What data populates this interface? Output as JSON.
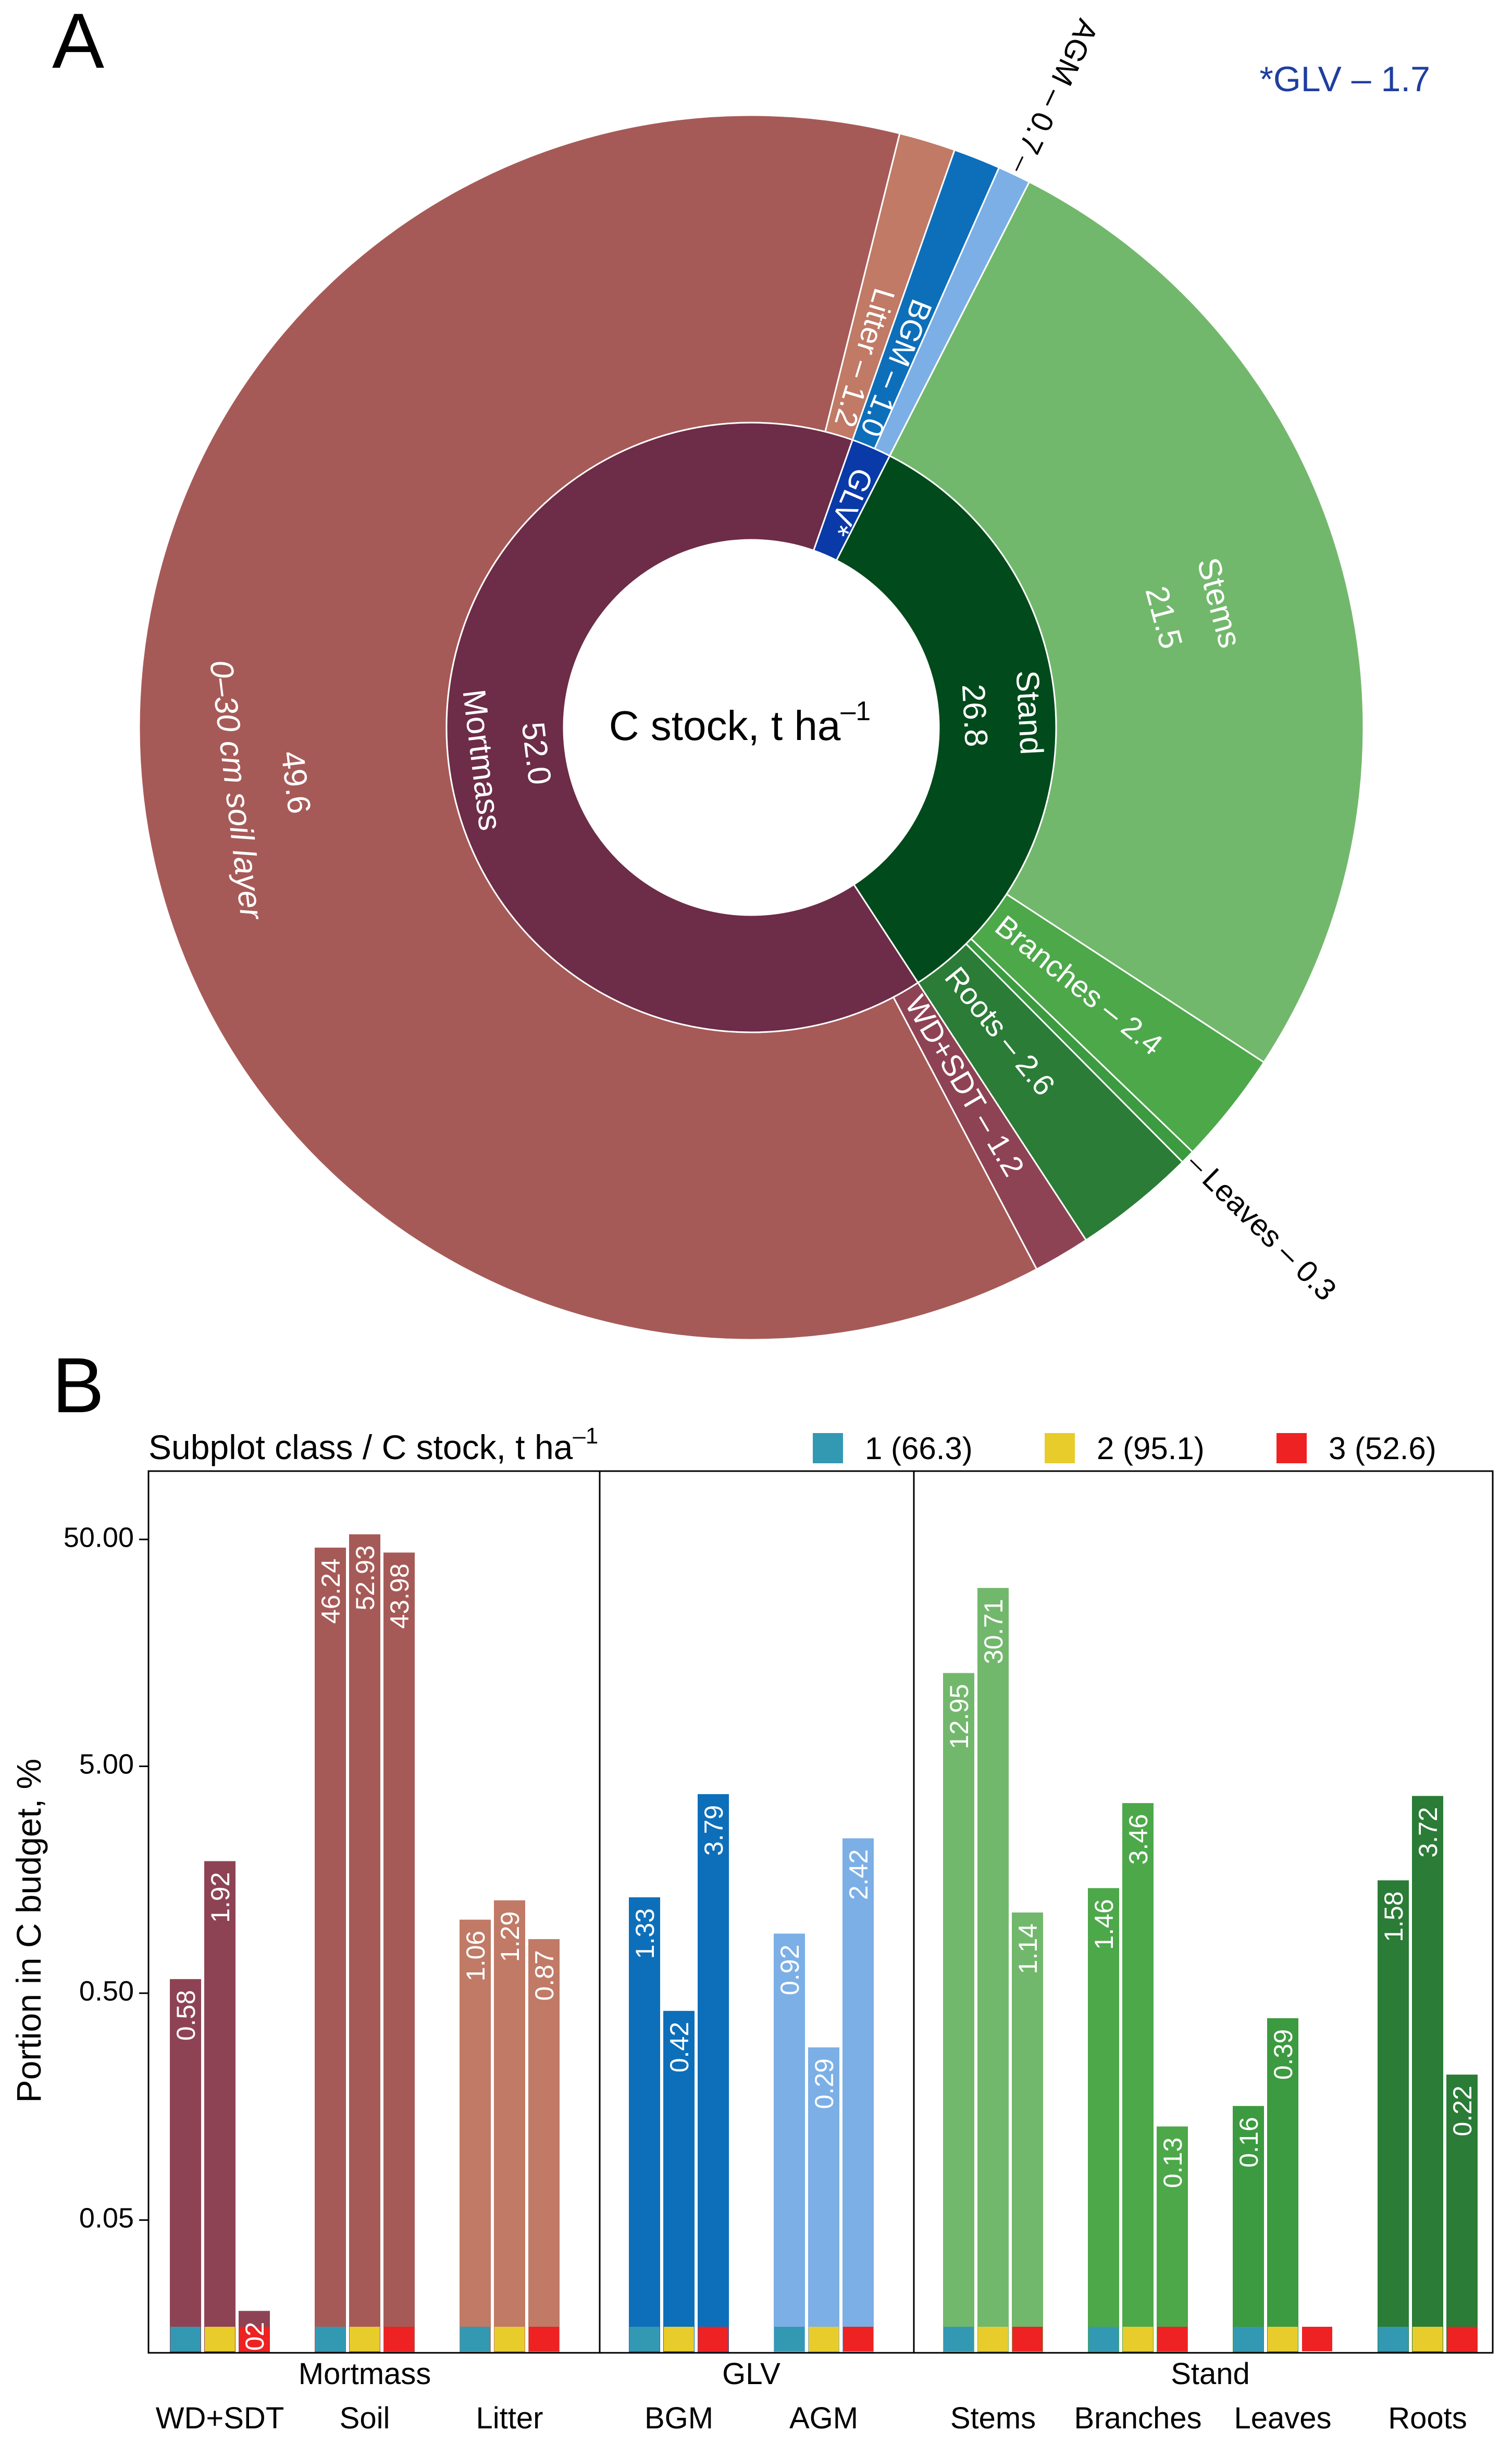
{
  "chart_data": [
    {
      "type": "sunburst",
      "panel_letter": "A",
      "center_label": "C stock, t ha",
      "center_label_sup": "–1",
      "footnote": "*GLV  – 1.7",
      "inner_ring": [
        {
          "name": "Stand",
          "value": 26.8,
          "label": "Stand",
          "value_label": "26.8",
          "color": "#004a1c"
        },
        {
          "name": "Mortmass",
          "value": 52.0,
          "label": "Mortmass",
          "value_label": "52.0",
          "color": "#6d2c47"
        },
        {
          "name": "GLV",
          "value": 1.7,
          "label": "GLV*",
          "color": "#0a3aa8"
        }
      ],
      "outer_ring": [
        {
          "name": "Stems",
          "parent": "Stand",
          "value": 21.5,
          "label": "Stems",
          "value_label": "21.5",
          "color": "#72b86c"
        },
        {
          "name": "Branches",
          "parent": "Stand",
          "value": 2.4,
          "label": "Branches – 2.4",
          "color": "#4da84a"
        },
        {
          "name": "Leaves",
          "parent": "Stand",
          "value": 0.3,
          "label": "Leaves – 0.3",
          "color": "#3c9a40"
        },
        {
          "name": "Roots",
          "parent": "Stand",
          "value": 2.6,
          "label": "Roots – 2.6",
          "color": "#2a7c36"
        },
        {
          "name": "WD+SDT",
          "parent": "Mortmass",
          "value": 1.2,
          "label": "WD+SDT – 1.2",
          "color": "#8e4355"
        },
        {
          "name": "0–30 cm soil layer",
          "parent": "Mortmass",
          "value": 49.6,
          "label": "0–30 cm soil layer",
          "value_label": "49.6",
          "color": "#a65a57"
        },
        {
          "name": "Litter",
          "parent": "Mortmass",
          "value": 1.2,
          "label": "Litter – 1.2",
          "color": "#c07a66"
        },
        {
          "name": "BGM",
          "parent": "GLV",
          "value": 1.0,
          "label": "BGM – 1.0",
          "color": "#0d6fba"
        },
        {
          "name": "AGM",
          "parent": "GLV",
          "value": 0.7,
          "label": "AGM – 0.7",
          "color": "#7cafe6"
        }
      ]
    },
    {
      "type": "bar",
      "panel_letter": "B",
      "title": "Subplot class / C stock, t ha",
      "title_sup": "–1",
      "ylabel": "Portion in C budget, %",
      "yscale": "log",
      "ylim": [
        0.013,
        100
      ],
      "yticks": [
        0.05,
        0.5,
        5.0,
        50.0
      ],
      "ytick_labels": [
        "0.05",
        "0.50",
        "5.00",
        "50.00"
      ],
      "legend_position": "top",
      "legend": [
        {
          "label": "1 (66.3)",
          "color": "#3399b3"
        },
        {
          "label": "2 (95.1)",
          "color": "#e8cc2c"
        },
        {
          "label": "3 (52.6)",
          "color": "#ee2222"
        }
      ],
      "groups": [
        {
          "label": "Mortmass",
          "categories": [
            "WD+SDT",
            "Soil",
            "Litter"
          ]
        },
        {
          "label": "GLV",
          "categories": [
            "BGM",
            "AGM"
          ]
        },
        {
          "label": "Stand",
          "categories": [
            "Stems",
            "Branches",
            "Leaves",
            "Roots"
          ]
        }
      ],
      "categories": [
        "WD+SDT",
        "Soil",
        "Litter",
        "BGM",
        "AGM",
        "Stems",
        "Branches",
        "Leaves",
        "Roots"
      ],
      "category_colors": [
        "#8e4355",
        "#a65a57",
        "#c07a66",
        "#0d6fba",
        "#7cafe6",
        "#72b86c",
        "#4da84a",
        "#3c9a40",
        "#2a7c36"
      ],
      "series": [
        {
          "name": "1 (66.3)",
          "values": [
            0.58,
            46.24,
            1.06,
            1.33,
            0.92,
            12.95,
            1.46,
            0.16,
            1.58
          ]
        },
        {
          "name": "2 (95.1)",
          "values": [
            1.92,
            52.93,
            1.29,
            0.42,
            0.29,
            30.71,
            3.46,
            0.39,
            3.72
          ]
        },
        {
          "name": "3 (52.6)",
          "values": [
            0.02,
            43.98,
            0.87,
            3.79,
            2.42,
            1.14,
            0.13,
            0.01,
            0.22
          ]
        }
      ]
    }
  ]
}
